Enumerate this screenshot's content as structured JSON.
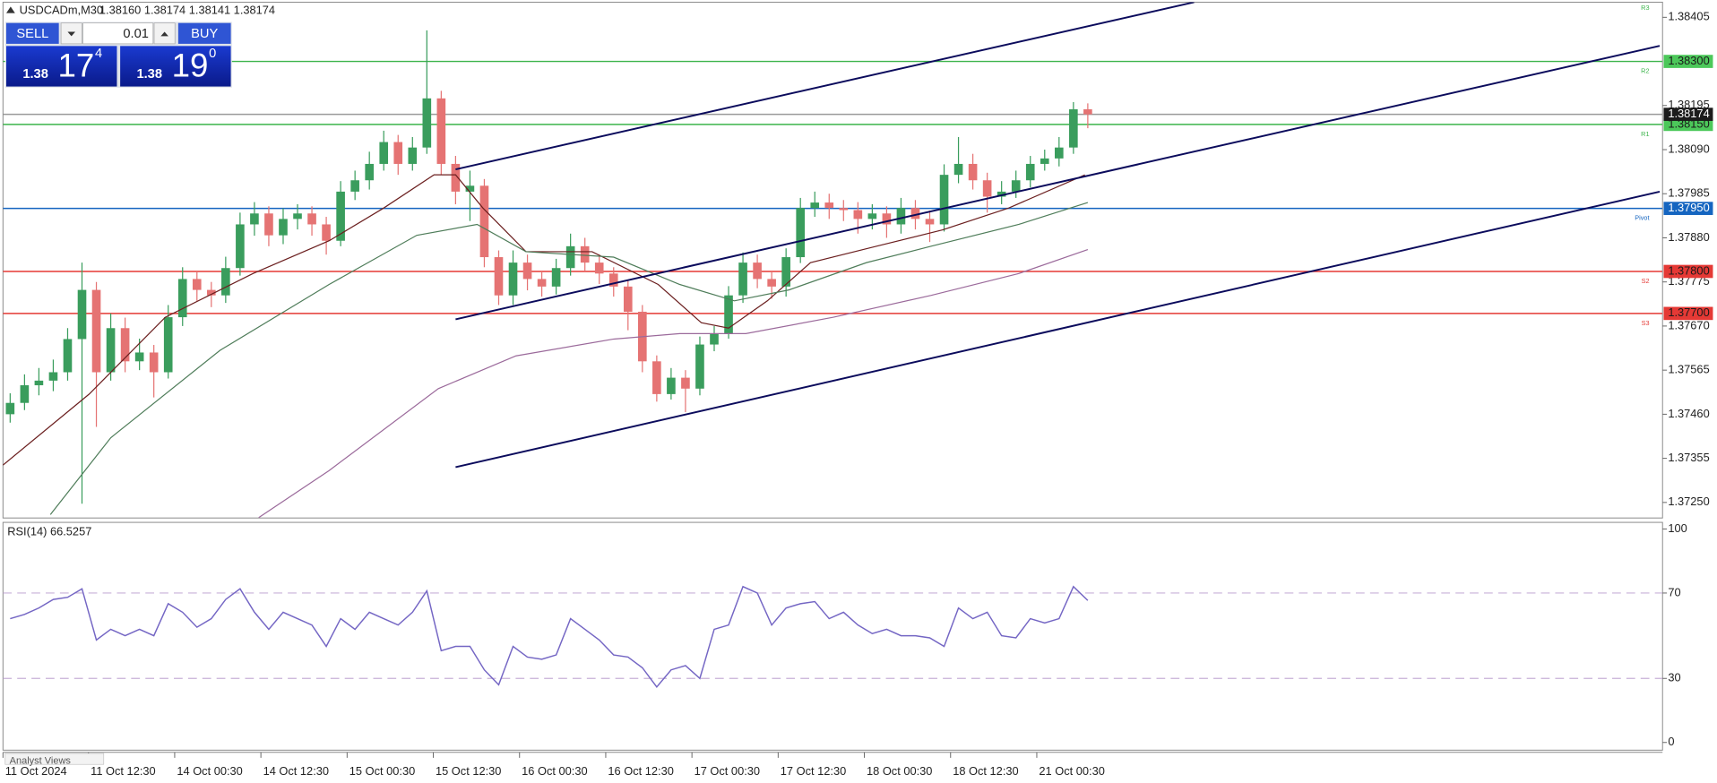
{
  "chart_data": [
    {
      "type": "candlestick",
      "title": "USDCADm,M30",
      "subtitle": "1.38160 1.38174 1.38141 1.38174",
      "xlim": [
        0,
        115.5
      ],
      "ylim": [
        1.37213,
        1.38441
      ],
      "xticks": [
        {
          "value": 0,
          "label": "11 Oct 2024"
        },
        {
          "value": 5.95,
          "label": "11 Oct 12:30"
        },
        {
          "value": 11.95,
          "label": "14 Oct 00:30"
        },
        {
          "value": 17.95,
          "label": "14 Oct 12:30"
        },
        {
          "value": 23.95,
          "label": "15 Oct 00:30"
        },
        {
          "value": 29.95,
          "label": "15 Oct 12:30"
        },
        {
          "value": 35.95,
          "label": "16 Oct 00:30"
        },
        {
          "value": 41.95,
          "label": "16 Oct 12:30"
        },
        {
          "value": 47.95,
          "label": "17 Oct 00:30"
        },
        {
          "value": 53.95,
          "label": "17 Oct 12:30"
        },
        {
          "value": 59.95,
          "label": "18 Oct 00:30"
        },
        {
          "value": 65.95,
          "label": "18 Oct 12:30"
        },
        {
          "value": 71.95,
          "label": "21 Oct 00:30"
        }
      ],
      "yticks": [
        1.38405,
        1.38195,
        {
          "value": 1.3809,
          "label": "1.38090"
        },
        1.37985,
        {
          "value": 1.3788,
          "label": "1.37880"
        },
        1.37775,
        {
          "value": 1.3767,
          "label": "1.37670"
        },
        1.37565,
        {
          "value": 1.3746,
          "label": "1.37460"
        },
        1.37355,
        {
          "value": 1.3725,
          "label": "1.37250"
        }
      ],
      "up_color": "#3a9d5d",
      "down_color": "#e57373",
      "open": [
        1.3746,
        1.37487,
        1.37529,
        1.3754,
        1.3756,
        1.37639,
        1.37756,
        1.3756,
        1.37665,
        1.37586,
        1.37607,
        1.3756,
        1.37691,
        1.37782,
        1.37756,
        1.37743,
        1.37808,
        1.37912,
        1.37938,
        1.37886,
        1.37925,
        1.37938,
        1.37912,
        1.37873,
        1.3799,
        1.38017,
        1.38056,
        1.38108,
        1.38056,
        1.38095,
        1.38212,
        1.38056,
        1.3799,
        1.38004,
        1.37834,
        1.37743,
        1.37821,
        1.37782,
        1.37764,
        1.37808,
        1.3786,
        1.37821,
        1.37795,
        1.37764,
        1.37704,
        1.37586,
        1.37508,
        1.37547,
        1.37521,
        1.37626,
        1.37652,
        1.37743,
        1.37821,
        1.37782,
        1.37764,
        1.37834,
        1.37951,
        1.37964,
        1.37951,
        1.37946,
        1.37925,
        1.37938,
        1.37912,
        1.37951,
        1.37925,
        1.37912,
        1.3803,
        1.38056,
        1.38017,
        1.37978,
        1.3799,
        1.38017,
        1.38056,
        1.38069,
        1.38095,
        1.38186
      ],
      "high": [
        1.3751,
        1.37555,
        1.3757,
        1.3759,
        1.37665,
        1.37821,
        1.37775,
        1.377,
        1.3769,
        1.3764,
        1.37625,
        1.3772,
        1.3781,
        1.378,
        1.37775,
        1.37835,
        1.3794,
        1.37965,
        1.37955,
        1.3795,
        1.3796,
        1.37955,
        1.3793,
        1.38015,
        1.3804,
        1.38085,
        1.38135,
        1.38125,
        1.3812,
        1.38374,
        1.3823,
        1.38075,
        1.3804,
        1.3802,
        1.3785,
        1.3785,
        1.3784,
        1.378,
        1.3783,
        1.3789,
        1.3788,
        1.3784,
        1.3781,
        1.3778,
        1.3772,
        1.376,
        1.3757,
        1.37565,
        1.37645,
        1.3767,
        1.37765,
        1.37845,
        1.3784,
        1.378,
        1.37855,
        1.37975,
        1.3799,
        1.37985,
        1.3797,
        1.37965,
        1.3796,
        1.37955,
        1.37975,
        1.3797,
        1.37945,
        1.38055,
        1.3812,
        1.3808,
        1.38035,
        1.38015,
        1.3804,
        1.38075,
        1.3809,
        1.3812,
        1.38203,
        1.382
      ],
      "low": [
        1.3744,
        1.3747,
        1.37505,
        1.37515,
        1.3754,
        1.37247,
        1.3743,
        1.3754,
        1.3756,
        1.37565,
        1.375,
        1.37545,
        1.3767,
        1.3773,
        1.37715,
        1.37725,
        1.3779,
        1.37885,
        1.3786,
        1.37865,
        1.379,
        1.37885,
        1.3784,
        1.3786,
        1.3797,
        1.37995,
        1.3804,
        1.3803,
        1.3804,
        1.3808,
        1.3803,
        1.3796,
        1.3792,
        1.3781,
        1.3772,
        1.3772,
        1.37755,
        1.3774,
        1.37745,
        1.3779,
        1.378,
        1.3777,
        1.3774,
        1.3766,
        1.3756,
        1.3749,
        1.37495,
        1.37465,
        1.37505,
        1.3761,
        1.3764,
        1.37725,
        1.3776,
        1.37735,
        1.3774,
        1.3782,
        1.3793,
        1.37925,
        1.3792,
        1.3789,
        1.379,
        1.3788,
        1.3789,
        1.379,
        1.3787,
        1.37895,
        1.3801,
        1.37995,
        1.3794,
        1.3796,
        1.37975,
        1.38,
        1.3804,
        1.3805,
        1.3808,
        1.38141
      ],
      "close": [
        1.37487,
        1.37529,
        1.3754,
        1.3756,
        1.37639,
        1.37756,
        1.3756,
        1.37665,
        1.37586,
        1.37607,
        1.3756,
        1.37691,
        1.37782,
        1.37756,
        1.37743,
        1.37808,
        1.37912,
        1.37938,
        1.37886,
        1.37925,
        1.37938,
        1.37912,
        1.37873,
        1.3799,
        1.38017,
        1.38056,
        1.38108,
        1.38056,
        1.38095,
        1.38212,
        1.38056,
        1.3799,
        1.38004,
        1.37834,
        1.37743,
        1.37821,
        1.37782,
        1.37764,
        1.37808,
        1.3786,
        1.37821,
        1.37795,
        1.37764,
        1.37704,
        1.37586,
        1.37508,
        1.37547,
        1.37521,
        1.37626,
        1.37652,
        1.37743,
        1.37821,
        1.37782,
        1.37764,
        1.37834,
        1.37951,
        1.37964,
        1.37951,
        1.37946,
        1.37925,
        1.37938,
        1.37912,
        1.37951,
        1.37925,
        1.37912,
        1.3803,
        1.38056,
        1.38017,
        1.37978,
        1.3799,
        1.38017,
        1.38056,
        1.38069,
        1.38095,
        1.38186,
        1.38174
      ],
      "series": [
        {
          "color": "#6b1f1f",
          "x": [
            0,
            6,
            11.3,
            17.4,
            22.7,
            26.5,
            30,
            31.5,
            33.4,
            36.4,
            41,
            45.6,
            48.6,
            50.5,
            53.2,
            56.2,
            60.8,
            65.4,
            70,
            75.3
          ],
          "values": [
            1.37339,
            1.37508,
            1.37691,
            1.37795,
            1.37873,
            1.37951,
            1.3803,
            1.3803,
            1.37951,
            1.37847,
            1.37847,
            1.37769,
            1.37678,
            1.37665,
            1.3773,
            1.37821,
            1.3786,
            1.37899,
            1.37951,
            1.3803
          ]
        },
        {
          "color": "#4f7d5a",
          "x": [
            3.3,
            7.5,
            15.1,
            22.7,
            28.8,
            33,
            36.4,
            42.5,
            47.1,
            50.9,
            54.7,
            60.1,
            64.6,
            70.7,
            75.5
          ],
          "values": [
            1.37221,
            1.37404,
            1.37612,
            1.37769,
            1.37886,
            1.37912,
            1.37847,
            1.37834,
            1.37769,
            1.3773,
            1.37756,
            1.37821,
            1.3786,
            1.37912,
            1.37964
          ]
        },
        {
          "color": "#9b6a9b",
          "x": [
            17.8,
            22.7,
            30.3,
            35.7,
            42.5,
            47.1,
            51.7,
            57.8,
            64.6,
            70.7,
            75.5
          ],
          "values": [
            1.37214,
            1.37326,
            1.37521,
            1.37599,
            1.37639,
            1.37652,
            1.37652,
            1.37691,
            1.37743,
            1.37795,
            1.37852
          ]
        }
      ],
      "trendlines": [
        {
          "color": "#0b0b5c",
          "x": [
            31.5,
            82.9
          ],
          "values": [
            1.38043,
            1.38441
          ]
        },
        {
          "color": "#0b0b5c",
          "x": [
            31.5,
            115.3
          ],
          "values": [
            1.37686,
            1.38337
          ]
        },
        {
          "color": "#0b0b5c",
          "x": [
            31.5,
            115.3
          ],
          "values": [
            1.37334,
            1.3799
          ]
        }
      ],
      "levels": [
        {
          "name": "R3",
          "value": 1.3845,
          "color": "#3cb44b"
        },
        {
          "name": "R2",
          "value": 1.383,
          "label": "1.38300",
          "color": "#3cb44b",
          "tag_color": "#4cc85a",
          "text_color": "#1a1a1a"
        },
        {
          "name": "R1",
          "value": 1.3815,
          "label": "1.38150",
          "color": "#3cb44b",
          "tag_color": "#4cc85a",
          "text_color": "#1a1a1a"
        },
        {
          "name": "Pivot",
          "value": 1.3795,
          "label": "1.37950",
          "color": "#1565c0",
          "tag_color": "#1565c0",
          "text_color": "#ffffff"
        },
        {
          "name": "S2",
          "value": 1.378,
          "label": "1.37800",
          "color": "#e53935",
          "tag_color": "#e53935",
          "text_color": "#1a1a1a"
        },
        {
          "name": "S3",
          "value": 1.377,
          "label": "1.37700",
          "color": "#e53935",
          "tag_color": "#e53935",
          "text_color": "#1a1a1a"
        },
        {
          "value": 1.38174,
          "label": "1.38174",
          "color": "#9a9a9a",
          "tag_color": "#1c1c1c",
          "text_color": "#ffffff"
        }
      ]
    },
    {
      "type": "line",
      "title": "RSI(14) 66.5257",
      "xlim": [
        0,
        115.5
      ],
      "ylim": [
        -3.6,
        103.1
      ],
      "yticks": [
        0,
        30,
        70,
        100
      ],
      "levels": [
        70,
        30
      ],
      "color": "#7466c4",
      "values": [
        58,
        60,
        63,
        67,
        68,
        72,
        48,
        53,
        50,
        53,
        50,
        65,
        61,
        54,
        58,
        67,
        72,
        61,
        53,
        61,
        58,
        55,
        45,
        58,
        53,
        61,
        58,
        55,
        61,
        71,
        43,
        45,
        45,
        34,
        27,
        45,
        40,
        39,
        41,
        58,
        53,
        48,
        41,
        40,
        35,
        26,
        34,
        36,
        30,
        53,
        55,
        73,
        70,
        55,
        63,
        65,
        66,
        58,
        61,
        55,
        51,
        53,
        50,
        50,
        49,
        45,
        63,
        58,
        61,
        50,
        49,
        58,
        56,
        58,
        73,
        66.5257
      ]
    }
  ],
  "trade_panel": {
    "sell": "SELL",
    "buy": "BUY",
    "lot": "0.01",
    "sell_price": {
      "big": "1.38",
      "main": "17",
      "sup": "4"
    },
    "buy_price": {
      "big": "1.38",
      "main": "19",
      "sup": "0"
    }
  },
  "tab": "Analyst Views"
}
